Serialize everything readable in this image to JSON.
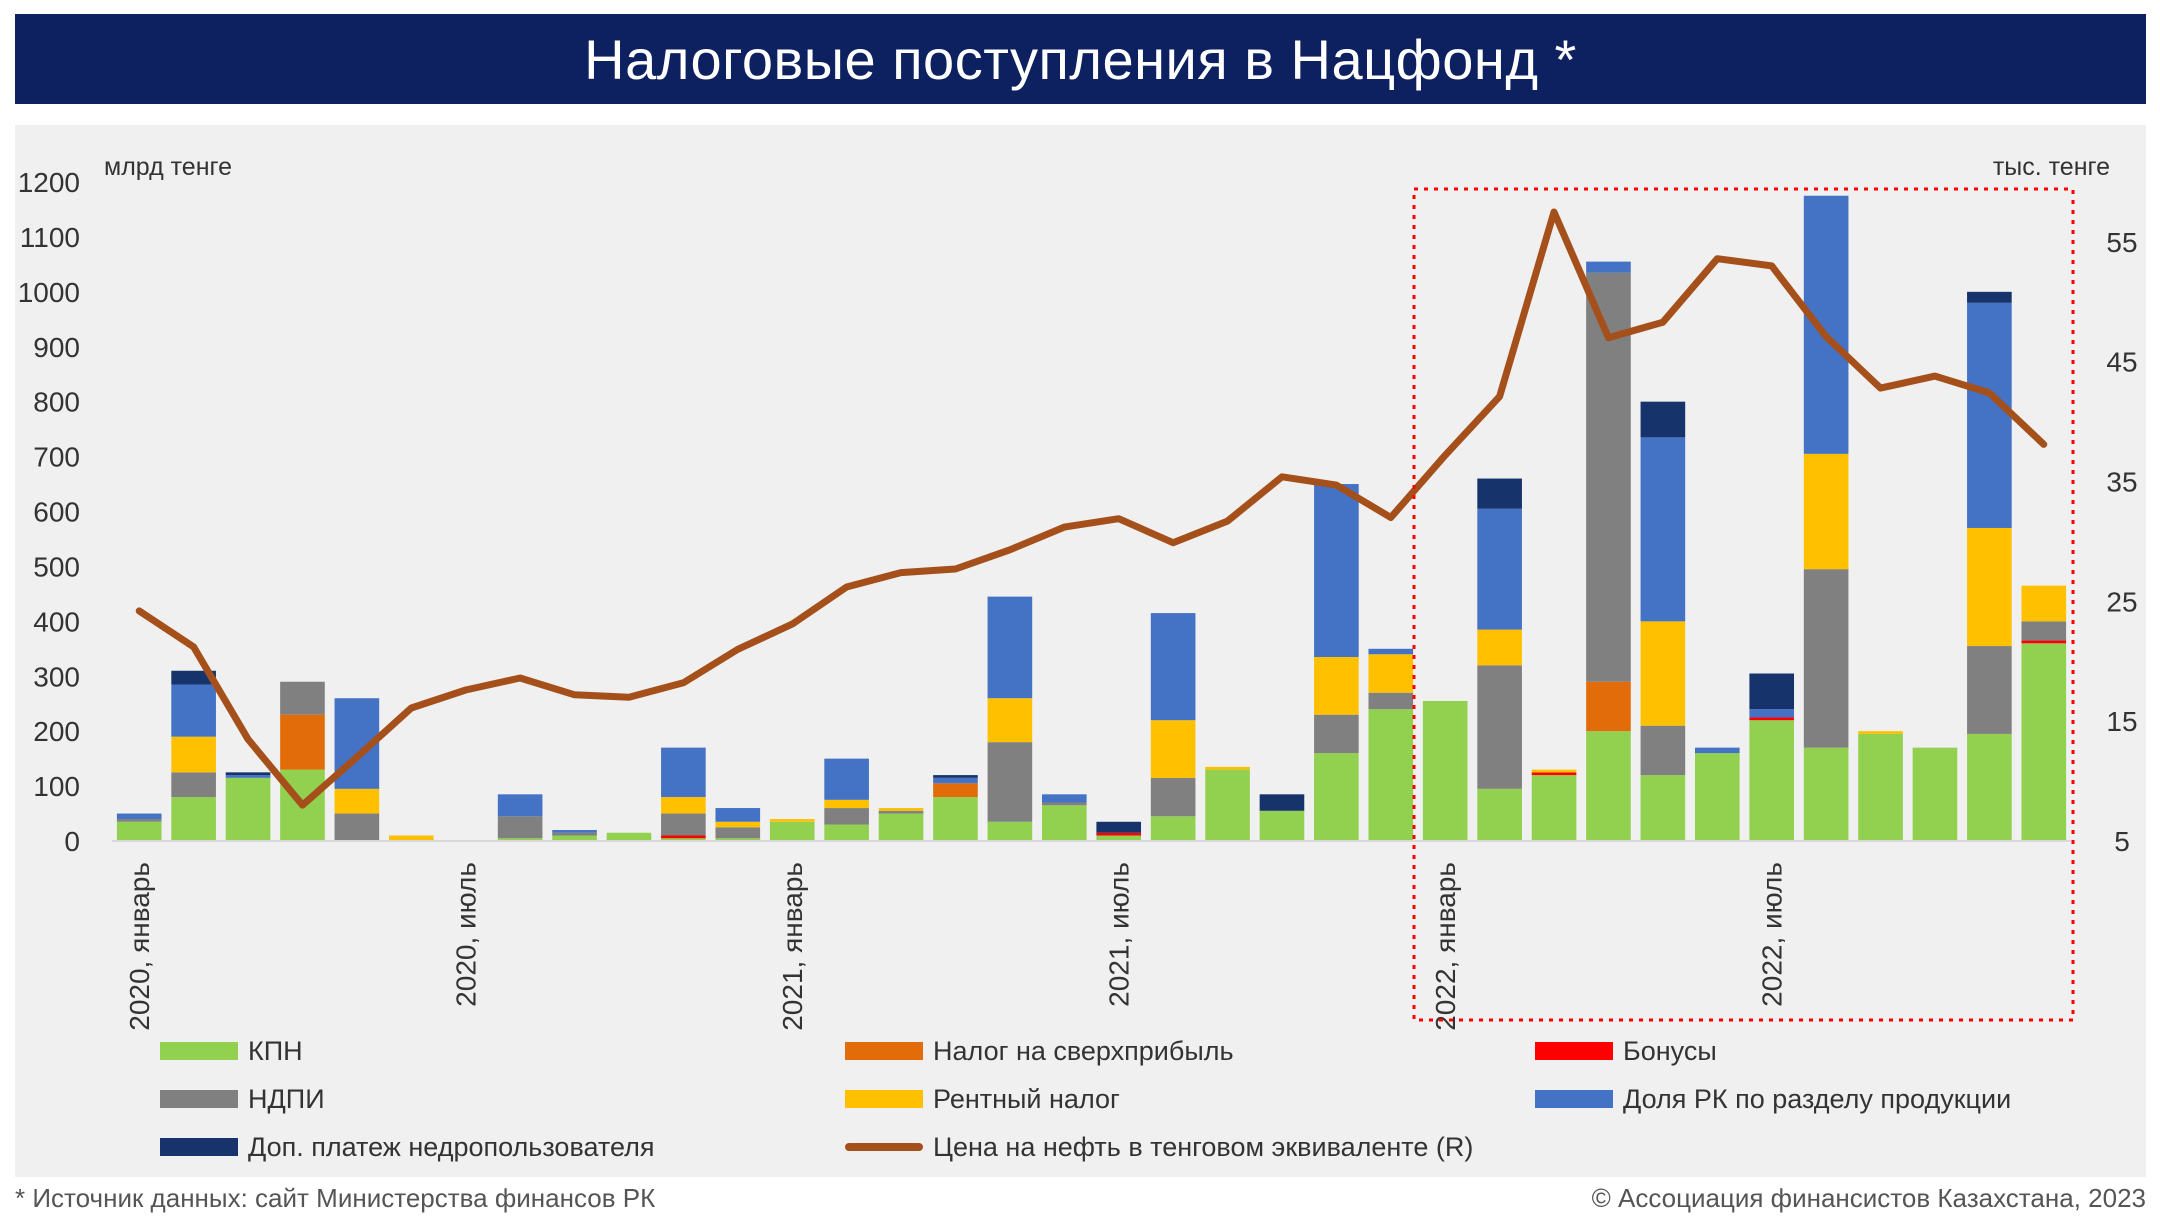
{
  "title": "Налоговые поступления в Нацфонд *",
  "footer": {
    "source": "* Источник данных: сайт Министерства финансов РК",
    "copyright": "© Ассоциация финансистов Казахстана, 2023"
  },
  "chart_data": {
    "type": "bar",
    "stacked": true,
    "y_label": "млрд тенге",
    "y2_label": "тыс. тенге",
    "ylim": [
      0,
      1200
    ],
    "yticks": [
      0,
      100,
      200,
      300,
      400,
      500,
      600,
      700,
      800,
      900,
      1000,
      1100,
      1200
    ],
    "y2lim": [
      5,
      60
    ],
    "y2ticks": [
      5,
      15,
      25,
      35,
      45,
      55
    ],
    "x_labels": [
      {
        "index": 0,
        "label": "2020, январь"
      },
      {
        "index": 6,
        "label": "2020, июль"
      },
      {
        "index": 12,
        "label": "2021, январь"
      },
      {
        "index": 18,
        "label": "2021, июль"
      },
      {
        "index": 24,
        "label": "2022, январь"
      },
      {
        "index": 30,
        "label": "2022, июль"
      }
    ],
    "highlight": {
      "from_index": 24,
      "to_index": 35,
      "style": "dotted-red"
    },
    "legend_position": "bottom",
    "series": [
      {
        "name": "КПН",
        "color": "#92d050",
        "values": [
          35,
          80,
          115,
          130,
          0,
          0,
          0,
          5,
          10,
          15,
          5,
          5,
          35,
          30,
          50,
          80,
          35,
          65,
          10,
          45,
          130,
          55,
          160,
          240,
          255,
          95,
          120,
          200,
          120,
          160,
          220,
          170,
          195,
          170,
          195,
          360
        ]
      },
      {
        "name": "Налог на сверхприбыль",
        "color": "#e36c0a",
        "values": [
          0,
          0,
          0,
          100,
          0,
          0,
          0,
          0,
          0,
          0,
          0,
          0,
          0,
          0,
          0,
          25,
          0,
          0,
          0,
          0,
          0,
          0,
          0,
          0,
          0,
          0,
          0,
          90,
          0,
          0,
          0,
          0,
          0,
          0,
          0,
          0
        ]
      },
      {
        "name": "Бонусы",
        "color": "#ff0000",
        "values": [
          0,
          0,
          0,
          0,
          0,
          0,
          0,
          0,
          0,
          0,
          5,
          0,
          0,
          0,
          0,
          0,
          0,
          0,
          5,
          0,
          0,
          0,
          0,
          0,
          0,
          0,
          5,
          0,
          0,
          0,
          5,
          0,
          0,
          0,
          0,
          5
        ]
      },
      {
        "name": "НДПИ",
        "color": "#808080",
        "values": [
          5,
          45,
          0,
          60,
          50,
          0,
          0,
          40,
          5,
          0,
          40,
          20,
          0,
          30,
          5,
          0,
          145,
          5,
          0,
          70,
          0,
          0,
          70,
          30,
          0,
          225,
          0,
          745,
          90,
          0,
          0,
          325,
          0,
          0,
          160,
          35
        ]
      },
      {
        "name": "Рентный налог",
        "color": "#ffc000",
        "values": [
          0,
          65,
          0,
          0,
          45,
          10,
          0,
          0,
          0,
          0,
          30,
          10,
          5,
          15,
          5,
          0,
          80,
          0,
          0,
          105,
          5,
          0,
          105,
          70,
          0,
          65,
          5,
          0,
          190,
          0,
          0,
          210,
          5,
          0,
          215,
          65
        ]
      },
      {
        "name": "Доля РК по разделу продукции",
        "color": "#4472c4",
        "values": [
          10,
          95,
          5,
          0,
          165,
          0,
          0,
          40,
          5,
          0,
          90,
          25,
          0,
          75,
          0,
          10,
          185,
          15,
          0,
          195,
          0,
          0,
          315,
          10,
          0,
          220,
          0,
          20,
          335,
          10,
          15,
          470,
          0,
          0,
          410,
          0
        ]
      },
      {
        "name": "Доп. платеж недропользователя",
        "color": "#17336b",
        "values": [
          0,
          25,
          5,
          0,
          0,
          0,
          0,
          0,
          0,
          0,
          0,
          0,
          0,
          0,
          0,
          5,
          0,
          0,
          20,
          0,
          0,
          30,
          0,
          0,
          0,
          55,
          0,
          0,
          65,
          0,
          65,
          0,
          0,
          0,
          20,
          0
        ]
      }
    ],
    "line": {
      "name": "Цена на нефть в тенговом эквиваленте (R)",
      "color": "#a5501b",
      "axis": "right",
      "values": [
        24.2,
        21.2,
        13.5,
        8.0,
        12.0,
        16.1,
        17.6,
        18.6,
        17.2,
        17.0,
        18.2,
        21.0,
        23.1,
        26.2,
        27.4,
        27.7,
        29.3,
        31.2,
        31.9,
        29.9,
        31.7,
        35.4,
        34.7,
        32.0,
        37.2,
        42.1,
        57.5,
        47.0,
        48.3,
        53.6,
        53.0,
        47.1,
        42.8,
        43.8,
        42.4,
        38.1
      ]
    }
  }
}
